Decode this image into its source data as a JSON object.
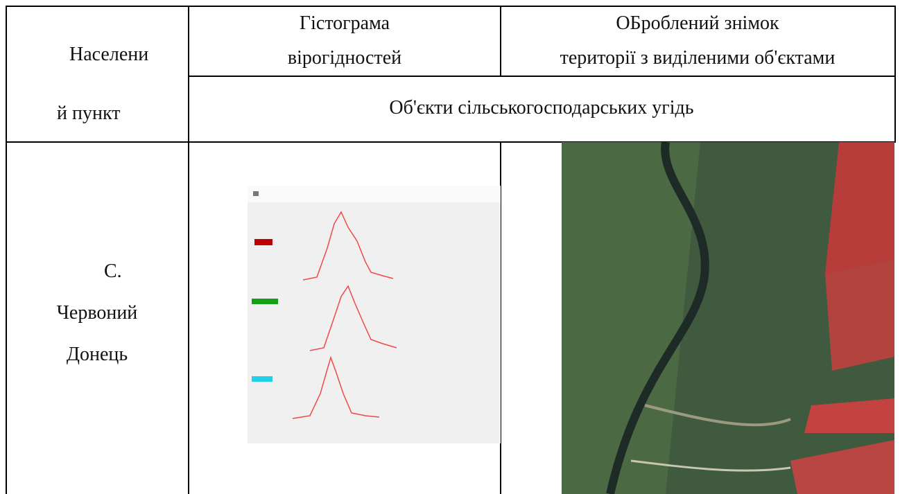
{
  "table": {
    "header": {
      "settlement": [
        "Населени",
        "й пункт"
      ],
      "histogram": [
        "Гістограма",
        "вірогідностей"
      ],
      "processed_image": [
        "ОБроблений знімок",
        "території з виділеними об'єктами"
      ],
      "objects": "Об'єкти сільськогосподарських угідь"
    },
    "rows": [
      {
        "settlement": [
          "С.",
          "Червоний",
          "Донець"
        ]
      }
    ]
  }
}
